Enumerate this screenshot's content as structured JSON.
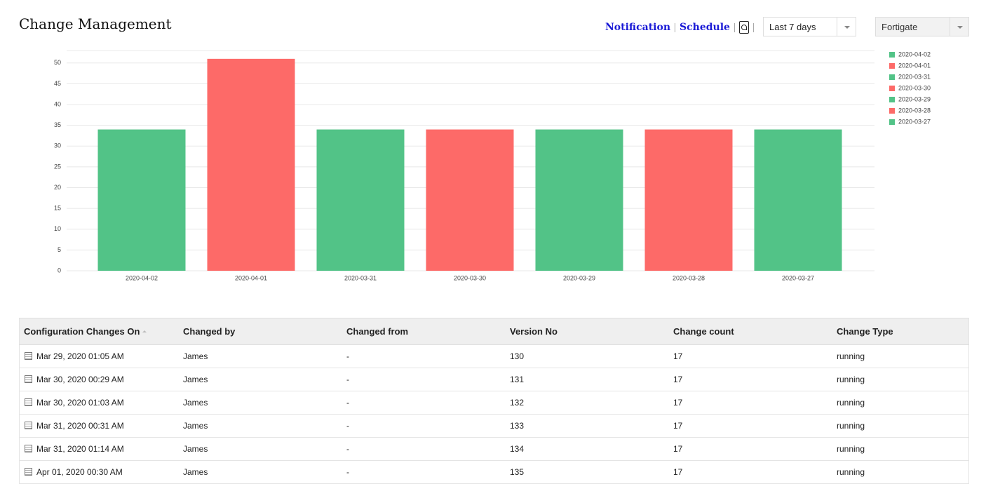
{
  "header": {
    "title": "Change Management",
    "links": [
      "Notification",
      "Schedule"
    ],
    "period": "Last 7 days",
    "device": "Fortigate"
  },
  "chart_data": {
    "type": "bar",
    "categories": [
      "2020-04-02",
      "2020-04-01",
      "2020-03-31",
      "2020-03-30",
      "2020-03-29",
      "2020-03-28",
      "2020-03-27"
    ],
    "values": [
      34,
      51,
      34,
      34,
      34,
      34,
      34
    ],
    "colors": [
      "#52c387",
      "#fd6a68",
      "#52c387",
      "#fd6a68",
      "#52c387",
      "#fd6a68",
      "#52c387"
    ],
    "ylim": [
      0,
      53
    ],
    "yticks": [
      0,
      5,
      10,
      15,
      20,
      25,
      30,
      35,
      40,
      45,
      50
    ],
    "grid": true,
    "legend": "right"
  },
  "table": {
    "columns": [
      "Configuration Changes On",
      "Changed by",
      "Changed from",
      "Version No",
      "Change count",
      "Change Type"
    ],
    "rows": [
      [
        "Mar 29, 2020 01:05 AM",
        "James",
        "-",
        "130",
        "17",
        "running"
      ],
      [
        "Mar 30, 2020 00:29 AM",
        "James",
        "-",
        "131",
        "17",
        "running"
      ],
      [
        "Mar 30, 2020 01:03 AM",
        "James",
        "-",
        "132",
        "17",
        "running"
      ],
      [
        "Mar 31, 2020 00:31 AM",
        "James",
        "-",
        "133",
        "17",
        "running"
      ],
      [
        "Mar 31, 2020 01:14 AM",
        "James",
        "-",
        "134",
        "17",
        "running"
      ],
      [
        "Apr 01, 2020 00:30 AM",
        "James",
        "-",
        "135",
        "17",
        "running"
      ]
    ]
  }
}
